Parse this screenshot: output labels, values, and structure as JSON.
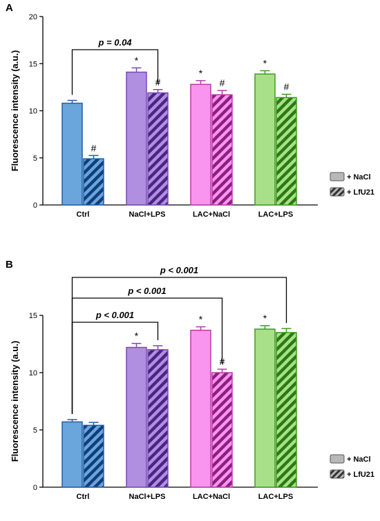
{
  "legend": {
    "items": [
      {
        "label": "+ NaCl",
        "pattern": "solid"
      },
      {
        "label": "+ LfU21",
        "pattern": "hatched"
      }
    ]
  },
  "colors": {
    "Ctrl": {
      "fill": "#6aa5db",
      "stroke": "#1f5fa8",
      "hatch": "#0f3f7a"
    },
    "NaCl+LPS": {
      "fill": "#b08ee0",
      "stroke": "#7a48b4",
      "hatch": "#4a2585"
    },
    "LAC+NaCl": {
      "fill": "#f995ee",
      "stroke": "#b83aa8",
      "hatch": "#8c1f80"
    },
    "LAC+LPS": {
      "fill": "#a8e08a",
      "stroke": "#3f9a1f",
      "hatch": "#2b7a12"
    },
    "legend_fill": "#b8b8b8",
    "legend_stroke": "#555555"
  },
  "chart_data": [
    {
      "type": "bar",
      "panel": "A",
      "categories": [
        "Ctrl",
        "NaCl+LPS",
        "LAC+NaCl",
        "LAC+LPS"
      ],
      "series": [
        {
          "name": "+ NaCl",
          "values": [
            10.8,
            14.1,
            12.8,
            13.9
          ],
          "errors": [
            0.3,
            0.45,
            0.4,
            0.35
          ],
          "marks": [
            "",
            "*",
            "*",
            "*"
          ]
        },
        {
          "name": "+ LfU21",
          "values": [
            4.9,
            11.9,
            11.7,
            11.4
          ],
          "errors": [
            0.35,
            0.35,
            0.45,
            0.35
          ],
          "marks": [
            "#",
            "#",
            "#",
            "#"
          ]
        }
      ],
      "ylabel": "Fluorescence intensity (a.u.)",
      "ylim": [
        0,
        20
      ],
      "yticks": [
        0,
        5,
        10,
        15,
        20
      ],
      "brackets": [
        {
          "from_category": 0,
          "from_series": 0,
          "to_category": 1,
          "to_series": 1,
          "label": "p = 0.04"
        }
      ]
    },
    {
      "type": "bar",
      "panel": "B",
      "categories": [
        "Ctrl",
        "NaCl+LPS",
        "LAC+NaCl",
        "LAC+LPS"
      ],
      "series": [
        {
          "name": "+ NaCl",
          "values": [
            5.7,
            12.2,
            13.7,
            13.8
          ],
          "errors": [
            0.2,
            0.35,
            0.3,
            0.3
          ],
          "marks": [
            "",
            "*",
            "*",
            "*"
          ]
        },
        {
          "name": "+ LfU21",
          "values": [
            5.4,
            12.0,
            10.0,
            13.5
          ],
          "errors": [
            0.25,
            0.35,
            0.3,
            0.35
          ],
          "marks": [
            "",
            "",
            "#",
            ""
          ]
        }
      ],
      "ylabel": "Fluorescence intensity (a.u.)",
      "ylim": [
        0,
        15
      ],
      "yticks": [
        0,
        5,
        10,
        15
      ],
      "brackets": [
        {
          "from_category": 0,
          "from_series": 0,
          "to_category": 1,
          "to_series": 1,
          "label": "p < 0.001"
        },
        {
          "from_category": 0,
          "from_series": 0,
          "to_category": 2,
          "to_series": 1,
          "label": "p < 0.001"
        },
        {
          "from_category": 0,
          "from_series": 0,
          "to_category": 3,
          "to_series": 1,
          "label": "p < 0.001"
        }
      ]
    }
  ]
}
